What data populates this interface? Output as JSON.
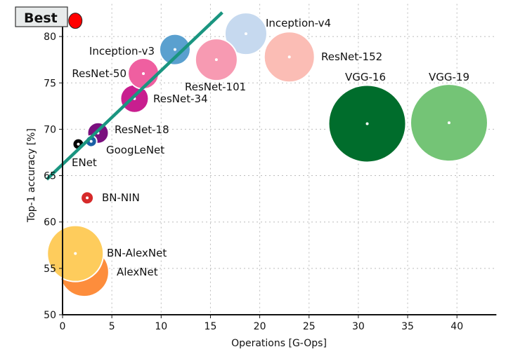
{
  "chart_data": {
    "type": "scatter",
    "title": "",
    "xlabel": "Operations [G-Ops]",
    "ylabel": "Top-1 accuracy [%]",
    "xlim": [
      0,
      44
    ],
    "ylim": [
      50,
      82
    ],
    "xticks": [
      0,
      5,
      10,
      15,
      20,
      25,
      30,
      35,
      40
    ],
    "yticks": [
      50,
      55,
      60,
      65,
      70,
      75,
      80
    ],
    "grid": true,
    "best_marker": {
      "label": "Best",
      "x": 1.3,
      "y": 81.7,
      "color": "#ff0000"
    },
    "trend_line": {
      "x": [
        -1.6,
        16.2
      ],
      "y": [
        64.6,
        82.6
      ],
      "color": "#1a9580"
    },
    "points": [
      {
        "name": "VGG-19",
        "x": 39.2,
        "y": 70.7,
        "size": 55,
        "color": "#74c476"
      },
      {
        "name": "VGG-16",
        "x": 30.9,
        "y": 70.6,
        "size": 55,
        "color": "#006d2c"
      },
      {
        "name": "ResNet-152",
        "x": 23.0,
        "y": 77.8,
        "size": 36,
        "color": "#fbbdb5"
      },
      {
        "name": "Inception-v4",
        "x": 18.6,
        "y": 80.3,
        "size": 30,
        "color": "#c6d9ef"
      },
      {
        "name": "ResNet-101",
        "x": 15.6,
        "y": 77.5,
        "size": 30,
        "color": "#f79ab2"
      },
      {
        "name": "Inception-v3",
        "x": 11.4,
        "y": 78.6,
        "size": 22,
        "color": "#5aa0cf"
      },
      {
        "name": "ResNet-34",
        "x": 7.3,
        "y": 73.3,
        "size": 20,
        "color": "#c81e8f"
      },
      {
        "name": "ResNet-50",
        "x": 8.2,
        "y": 76.0,
        "size": 22,
        "color": "#ef5fa0"
      },
      {
        "name": "ResNet-18",
        "x": 3.6,
        "y": 69.6,
        "size": 15,
        "color": "#7a0f7e"
      },
      {
        "name": "GoogLeNet",
        "x": 2.9,
        "y": 68.7,
        "size": 8,
        "color": "#1a5fa5"
      },
      {
        "name": "ENet",
        "x": 1.6,
        "y": 68.4,
        "size": 8,
        "color": "#000000"
      },
      {
        "name": "BN-NIN",
        "x": 2.5,
        "y": 62.6,
        "size": 9,
        "color": "#d62a2a"
      },
      {
        "name": "AlexNet",
        "x": 2.2,
        "y": 54.6,
        "size": 35,
        "color": "#fd8d3c"
      },
      {
        "name": "BN-AlexNet",
        "x": 1.3,
        "y": 56.6,
        "size": 40,
        "color": "#fecc5c"
      }
    ]
  }
}
